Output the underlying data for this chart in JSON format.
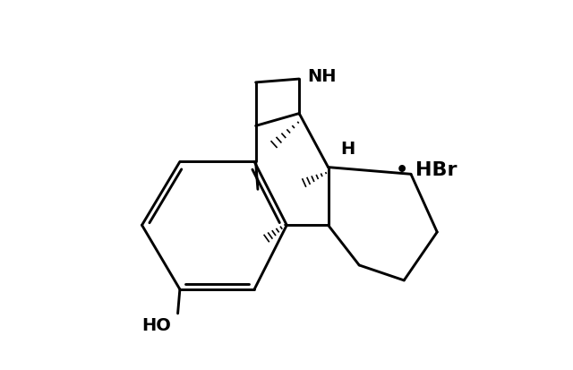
{
  "bg": "#ffffff",
  "lc": "#000000",
  "lw": 2.1,
  "fig_w": 6.4,
  "fig_h": 4.13,
  "dpi": 100,
  "NH_label": "NH",
  "H_label": "H",
  "HO_label": "HO",
  "HBr_label": "• HBr",
  "label_fs": 14,
  "hbr_fs": 16
}
